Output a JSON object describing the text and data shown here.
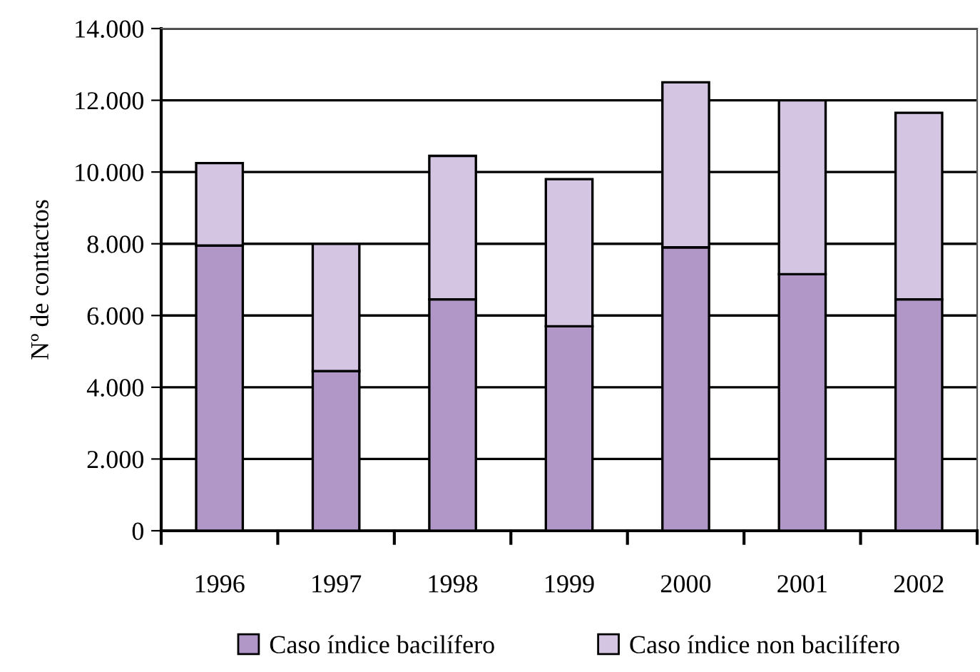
{
  "chart_data": {
    "type": "bar",
    "stacked": true,
    "ylabel": "Nº de contactos",
    "categories": [
      "1996",
      "1997",
      "1998",
      "1999",
      "2000",
      "2001",
      "2002"
    ],
    "series": [
      {
        "name": "Caso índice bacilífero",
        "color": "#b197c7",
        "values": [
          7950,
          4450,
          6450,
          5700,
          7900,
          7150,
          6450
        ]
      },
      {
        "name": "Caso índice non bacilífero",
        "color": "#d4c5e2",
        "values": [
          2300,
          3550,
          4000,
          4100,
          4600,
          4850,
          5200
        ]
      }
    ],
    "ylim": [
      0,
      14000
    ],
    "yticks": [
      0,
      {
        "value": 2000,
        "label": "2.000"
      },
      {
        "value": 4000,
        "label": "4.000"
      },
      {
        "value": 6000,
        "label": "6.000"
      },
      {
        "value": 8000,
        "label": "8.000"
      },
      {
        "value": 10000,
        "label": "10.000"
      },
      {
        "value": 12000,
        "label": "12.000"
      },
      {
        "value": 14000,
        "label": "14.000"
      }
    ],
    "grid": "y",
    "legend": "bottom"
  }
}
